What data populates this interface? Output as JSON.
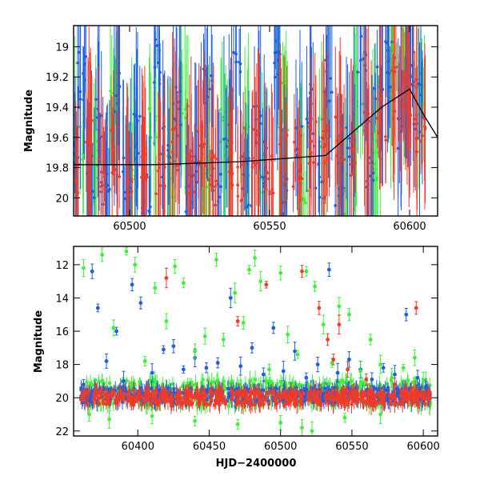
{
  "colors": {
    "blue": "#1f5fe0",
    "green": "#3cf03c",
    "red": "#f23a28",
    "axis": "#000000"
  },
  "chart_data": [
    {
      "type": "scatter",
      "title": "",
      "xlabel": "",
      "ylabel": "Magnitude",
      "xlim": [
        60480,
        60610
      ],
      "ylim": [
        20.12,
        18.86
      ],
      "y_inverted": true,
      "x_major_ticks": [
        60500,
        60550,
        60600
      ],
      "y_major_ticks": [
        19,
        19.2,
        19.4,
        19.6,
        19.8,
        20
      ],
      "x_tick_labels": [
        "60500",
        "60550",
        "60600"
      ],
      "y_tick_labels": [
        "19",
        "19.2",
        "19.4",
        "19.6",
        "19.8",
        "20"
      ],
      "grid": false,
      "series": [
        {
          "color": "blue",
          "values": [
            [
              60481,
              19.75
            ],
            [
              60483,
              19.2
            ],
            [
              60486,
              19.9
            ],
            [
              60489,
              19.5
            ],
            [
              60492,
              19.95
            ],
            [
              60496,
              19.3
            ],
            [
              60499,
              19.85
            ],
            [
              60503,
              19.6
            ],
            [
              60506,
              19.95
            ],
            [
              60510,
              19.1
            ],
            [
              60513,
              19.7
            ],
            [
              60517,
              19.4
            ],
            [
              60521,
              19.95
            ],
            [
              60524,
              19.8
            ],
            [
              60528,
              19.3
            ],
            [
              60531,
              19.9
            ],
            [
              60535,
              19.6
            ],
            [
              60538,
              19.2
            ],
            [
              60542,
              19.9
            ],
            [
              60546,
              19.5
            ],
            [
              60549,
              19.8
            ],
            [
              60553,
              19.1
            ],
            [
              60556,
              19.95
            ],
            [
              60560,
              19.7
            ],
            [
              60564,
              19.4
            ],
            [
              60568,
              19.85
            ],
            [
              60571,
              19.2
            ],
            [
              60575,
              19.9
            ],
            [
              60579,
              19.6
            ],
            [
              60583,
              19.0
            ],
            [
              60586,
              19.8
            ],
            [
              60589,
              19.3
            ],
            [
              60593,
              19.1
            ],
            [
              60597,
              19.5
            ],
            [
              60600,
              19.2
            ],
            [
              60603,
              19.4
            ]
          ]
        },
        {
          "color": "green",
          "values": [
            [
              60482,
              19.6
            ],
            [
              60487,
              19.75
            ],
            [
              60494,
              19.4
            ],
            [
              60501,
              19.9
            ],
            [
              60508,
              19.5
            ],
            [
              60515,
              19.85
            ],
            [
              60520,
              19.3
            ],
            [
              60527,
              19.95
            ],
            [
              60534,
              19.55
            ],
            [
              60541,
              19.7
            ],
            [
              60548,
              19.85
            ],
            [
              60555,
              19.4
            ],
            [
              60562,
              19.9
            ],
            [
              60569,
              19.6
            ],
            [
              60576,
              19.95
            ],
            [
              60582,
              19.5
            ],
            [
              60588,
              19.75
            ],
            [
              60594,
              19.2
            ],
            [
              60599,
              19.05
            ],
            [
              60604,
              19.3
            ]
          ]
        },
        {
          "color": "red",
          "values": [
            [
              60480,
              19.8
            ],
            [
              60485,
              19.6
            ],
            [
              60490,
              19.85
            ],
            [
              60495,
              19.7
            ],
            [
              60500,
              19.9
            ],
            [
              60505,
              19.75
            ],
            [
              60511,
              19.8
            ],
            [
              60516,
              19.65
            ],
            [
              60522,
              19.85
            ],
            [
              60526,
              19.7
            ],
            [
              60530,
              19.8
            ],
            [
              60536,
              19.75
            ],
            [
              60540,
              19.9
            ],
            [
              60545,
              19.7
            ],
            [
              60550,
              19.85
            ],
            [
              60555,
              19.75
            ],
            [
              60560,
              19.8
            ],
            [
              60565,
              19.65
            ],
            [
              60570,
              19.7
            ],
            [
              60575,
              19.6
            ],
            [
              60580,
              19.75
            ],
            [
              60585,
              19.6
            ],
            [
              60590,
              19.45
            ],
            [
              60595,
              19.3
            ],
            [
              60598,
              19.25
            ],
            [
              60601,
              19.35
            ],
            [
              60604,
              19.55
            ]
          ]
        }
      ],
      "trend_line": {
        "x": [
          60480,
          60510,
          60540,
          60570,
          60590,
          60600,
          60605,
          60610
        ],
        "y": [
          19.78,
          19.78,
          19.76,
          19.72,
          19.4,
          19.28,
          19.45,
          19.6
        ]
      }
    },
    {
      "type": "scatter",
      "title": "",
      "xlabel": "HJD−2400000",
      "ylabel": "Magnitude",
      "xlim": [
        60355,
        60610
      ],
      "ylim": [
        22.3,
        10.9
      ],
      "y_inverted": true,
      "x_major_ticks": [
        60400,
        60450,
        60500,
        60550,
        60600
      ],
      "y_major_ticks": [
        12,
        14,
        16,
        18,
        20,
        22
      ],
      "x_tick_labels": [
        "60400",
        "60450",
        "60500",
        "60550",
        "60600"
      ],
      "y_tick_labels": [
        "12",
        "14",
        "16",
        "18",
        "20",
        "22"
      ],
      "grid": false,
      "series": [
        {
          "color": "blue",
          "values": [
            [
              60362,
              19.2
            ],
            [
              60368,
              12.4
            ],
            [
              60372,
              14.6
            ],
            [
              60378,
              17.8
            ],
            [
              60385,
              16.0
            ],
            [
              60390,
              19.0
            ],
            [
              60396,
              13.2
            ],
            [
              60402,
              14.3
            ],
            [
              60410,
              18.5
            ],
            [
              60418,
              17.1
            ],
            [
              60425,
              16.9
            ],
            [
              60432,
              18.3
            ],
            [
              60440,
              17.6
            ],
            [
              60448,
              18.2
            ],
            [
              60456,
              17.9
            ],
            [
              60465,
              14.0
            ],
            [
              60472,
              18.1
            ],
            [
              60480,
              17.0
            ],
            [
              60488,
              18.6
            ],
            [
              60495,
              15.8
            ],
            [
              60502,
              18.4
            ],
            [
              60510,
              17.2
            ],
            [
              60518,
              18.8
            ],
            [
              60526,
              18.0
            ],
            [
              60534,
              12.3
            ],
            [
              60540,
              18.5
            ],
            [
              60548,
              17.7
            ],
            [
              60556,
              18.3
            ],
            [
              60564,
              18.9
            ],
            [
              60572,
              18.2
            ],
            [
              60580,
              18.6
            ],
            [
              60588,
              15.0
            ],
            [
              60596,
              18.8
            ],
            [
              60602,
              19.3
            ]
          ]
        },
        {
          "color": "green",
          "values": [
            [
              60362,
              12.2
            ],
            [
              60375,
              11.4
            ],
            [
              60383,
              15.8
            ],
            [
              60392,
              11.2
            ],
            [
              60398,
              12.0
            ],
            [
              60405,
              17.8
            ],
            [
              60412,
              13.4
            ],
            [
              60420,
              15.4
            ],
            [
              60426,
              12.1
            ],
            [
              60432,
              13.1
            ],
            [
              60440,
              17.2
            ],
            [
              60447,
              16.3
            ],
            [
              60455,
              11.7
            ],
            [
              60460,
              16.5
            ],
            [
              60468,
              13.7
            ],
            [
              60474,
              15.5
            ],
            [
              60478,
              12.3
            ],
            [
              60482,
              11.6
            ],
            [
              60486,
              13.0
            ],
            [
              60492,
              18.3
            ],
            [
              60500,
              12.5
            ],
            [
              60505,
              16.2
            ],
            [
              60512,
              17.4
            ],
            [
              60518,
              12.4
            ],
            [
              60524,
              13.3
            ],
            [
              60530,
              15.6
            ],
            [
              60536,
              17.9
            ],
            [
              60541,
              14.5
            ],
            [
              60548,
              15.0
            ],
            [
              60556,
              18.4
            ],
            [
              60563,
              16.5
            ],
            [
              60570,
              18.0
            ],
            [
              60578,
              18.8
            ],
            [
              60586,
              18.2
            ],
            [
              60594,
              17.6
            ],
            [
              60600,
              19.0
            ],
            [
              60366,
              21.0
            ],
            [
              60380,
              21.3
            ],
            [
              60410,
              21.1
            ],
            [
              60440,
              21.4
            ],
            [
              60470,
              21.6
            ],
            [
              60500,
              21.5
            ],
            [
              60515,
              21.8
            ],
            [
              60522,
              22.0
            ],
            [
              60545,
              21.2
            ],
            [
              60570,
              21.0
            ]
          ]
        },
        {
          "color": "red",
          "values": [
            [
              60420,
              12.8
            ],
            [
              60470,
              15.4
            ],
            [
              60490,
              13.2
            ],
            [
              60515,
              12.4
            ],
            [
              60527,
              14.6
            ],
            [
              60533,
              16.5
            ],
            [
              60537,
              17.7
            ],
            [
              60541,
              15.6
            ],
            [
              60547,
              18.3
            ],
            [
              60595,
              14.6
            ],
            [
              60560,
              18.9
            ],
            [
              60580,
              19.2
            ]
          ]
        }
      ],
      "baseline": {
        "blue": 19.85,
        "red": 20.0,
        "green": 19.7,
        "x_start": 60360,
        "x_end": 60605
      }
    }
  ]
}
